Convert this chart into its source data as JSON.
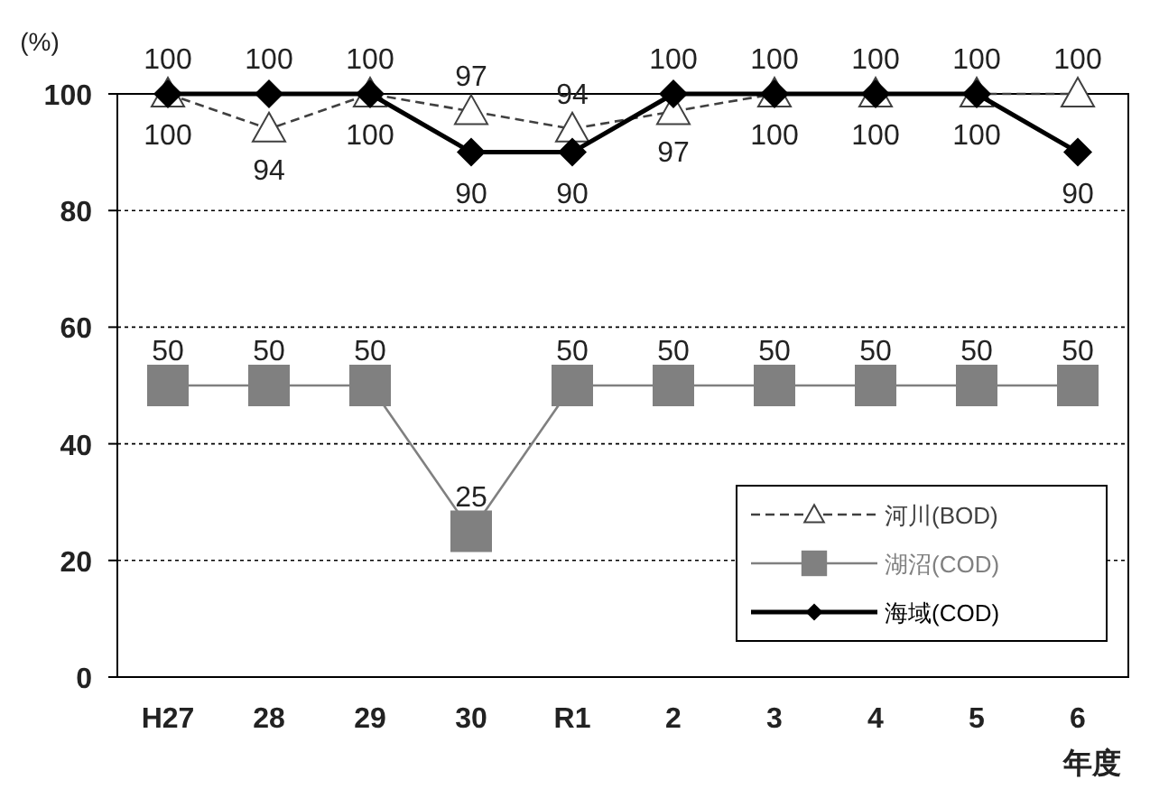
{
  "chart_data": {
    "type": "line",
    "ylabel": "(%)",
    "xlabel": "年度",
    "categories": [
      "H27",
      "28",
      "29",
      "30",
      "R1",
      "2",
      "3",
      "4",
      "5",
      "6"
    ],
    "series": [
      {
        "name": "河川(BOD)",
        "color": "#404040",
        "marker": "triangle",
        "line_style": "dashed",
        "values": [
          100,
          94,
          100,
          97,
          94,
          97,
          100,
          100,
          100,
          100
        ]
      },
      {
        "name": "湖沼(COD)",
        "color": "#808080",
        "marker": "square",
        "line_style": "solid",
        "values": [
          50,
          50,
          50,
          25,
          50,
          50,
          50,
          50,
          50,
          50
        ]
      },
      {
        "name": "海域(COD)",
        "color": "#000000",
        "marker": "diamond",
        "line_style": "solid",
        "values": [
          100,
          100,
          100,
          90,
          90,
          100,
          100,
          100,
          100,
          90
        ]
      }
    ],
    "ylim": [
      0,
      100
    ],
    "yticks": [
      0,
      20,
      40,
      60,
      80,
      100
    ],
    "grid": "y",
    "legend": "bottom right",
    "data_labels": true
  }
}
